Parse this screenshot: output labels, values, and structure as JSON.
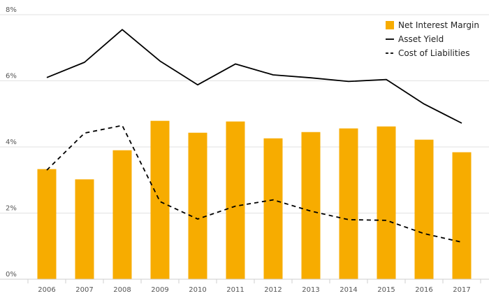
{
  "chart_data": {
    "type": "bar",
    "categories": [
      "2006",
      "2007",
      "2008",
      "2009",
      "2010",
      "2011",
      "2012",
      "2013",
      "2014",
      "2015",
      "2016",
      "2017"
    ],
    "series": [
      {
        "name": "Net Interest Margin",
        "type": "bar",
        "color": "#F7AC00",
        "values": [
          3.33,
          3.02,
          3.9,
          4.79,
          4.43,
          4.77,
          4.26,
          4.45,
          4.56,
          4.62,
          4.22,
          3.84
        ]
      },
      {
        "name": "Asset Yield",
        "type": "line",
        "style": "solid",
        "color": "#000000",
        "values": [
          6.1,
          6.56,
          7.55,
          6.6,
          5.88,
          6.51,
          6.18,
          6.09,
          5.98,
          6.04,
          5.3,
          4.72
        ]
      },
      {
        "name": "Cost of Liabilities",
        "type": "line",
        "style": "dashed",
        "color": "#000000",
        "values": [
          3.3,
          4.42,
          4.65,
          2.35,
          1.82,
          2.21,
          2.4,
          2.06,
          1.8,
          1.78,
          1.38,
          1.12
        ]
      }
    ],
    "y_ticks": [
      "0%",
      "2%",
      "4%",
      "6%",
      "8%"
    ],
    "ylim": [
      0,
      8
    ],
    "grid": true,
    "legend_position": "top-right",
    "title": "",
    "xlabel": "",
    "ylabel": ""
  }
}
